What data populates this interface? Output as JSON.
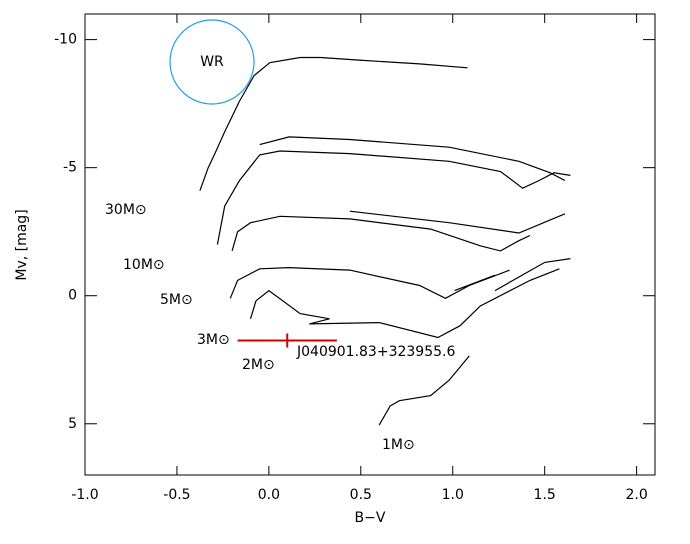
{
  "chart_data": {
    "type": "line",
    "xlabel": "B−V",
    "ylabel": "Mv, [mag]",
    "xlim": [
      -1.0,
      2.1
    ],
    "ylim": [
      7,
      -11
    ],
    "xticks": [
      {
        "value": -1.0,
        "label": "-1.0"
      },
      -0.5,
      {
        "value": 0.0,
        "label": "0.0"
      },
      0.5,
      {
        "value": 1.0,
        "label": "1.0"
      },
      1.5,
      {
        "value": 2.0,
        "label": "2.0"
      }
    ],
    "yticks": [
      -10,
      -5,
      0,
      5
    ],
    "line_color": "#000000",
    "series": [
      {
        "name": "30M⊙",
        "x": [
          -0.375,
          -0.33,
          -0.29,
          -0.24,
          -0.16,
          -0.08,
          0.005,
          0.17,
          0.28,
          0.49,
          0.82,
          1.08
        ],
        "values": [
          -4.1,
          -5.0,
          -5.6,
          -6.4,
          -7.6,
          -8.6,
          -9.1,
          -9.3,
          -9.3,
          -9.2,
          -9.05,
          -8.9
        ]
      },
      {
        "name": "10M⊙",
        "x": [
          -0.28,
          -0.24,
          -0.16,
          -0.05,
          0.06,
          0.44,
          0.98,
          1.26,
          1.38,
          1.47,
          1.55,
          1.64,
          null,
          -0.05,
          0.11,
          0.44,
          0.98,
          1.36,
          1.53,
          1.61
        ],
        "values": [
          -2.0,
          -3.5,
          -4.5,
          -5.5,
          -5.65,
          -5.55,
          -5.25,
          -4.85,
          -4.2,
          -4.5,
          -4.8,
          -4.7,
          null,
          -5.9,
          -6.2,
          -6.1,
          -5.8,
          -5.25,
          -4.8,
          -4.5
        ]
      },
      {
        "name": "5M⊙",
        "x": [
          -0.2,
          -0.17,
          -0.1,
          0.06,
          0.44,
          0.88,
          1.15,
          1.26,
          1.36,
          1.42,
          null,
          0.44,
          0.98,
          1.36,
          1.61
        ],
        "values": [
          -1.75,
          -2.5,
          -2.85,
          -3.1,
          -3.0,
          -2.6,
          -1.95,
          -1.75,
          -2.15,
          -2.35,
          null,
          -3.3,
          -2.85,
          -2.45,
          -3.2
        ]
      },
      {
        "name": "3M⊙",
        "x": [
          -0.21,
          -0.17,
          -0.05,
          0.11,
          0.44,
          0.82,
          0.96,
          1.09,
          1.31,
          null,
          1.01,
          1.23,
          null,
          1.23,
          1.5,
          1.64
        ],
        "values": [
          0.1,
          -0.6,
          -1.05,
          -1.1,
          -1.0,
          -0.4,
          0.1,
          -0.4,
          -1.0,
          null,
          -0.2,
          -0.8,
          null,
          -0.2,
          -1.3,
          -1.45
        ]
      },
      {
        "name": "2M⊙",
        "x": [
          -0.1,
          -0.07,
          0.0,
          0.17,
          0.33,
          0.22,
          0.6,
          0.92,
          1.04,
          1.15,
          1.42,
          1.58
        ],
        "values": [
          0.9,
          0.2,
          -0.2,
          0.7,
          0.9,
          1.1,
          1.05,
          1.63,
          1.17,
          0.4,
          -0.6,
          -1.05
        ]
      },
      {
        "name": "1M⊙",
        "x": [
          0.6,
          0.66,
          0.71,
          0.88,
          0.98,
          1.09
        ],
        "values": [
          5.05,
          4.3,
          4.1,
          3.9,
          3.3,
          2.35
        ]
      }
    ],
    "star": {
      "label": "J040901.83+323955.6",
      "x": 0.1,
      "y": 1.75,
      "xerr": 0.27,
      "color": "#cc0000"
    },
    "wr": {
      "label": "WR",
      "color": "#1ea0e6"
    }
  }
}
